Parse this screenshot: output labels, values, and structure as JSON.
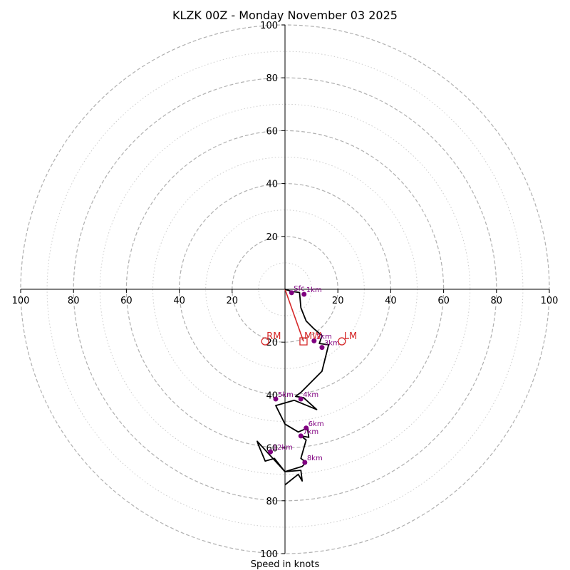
{
  "chart_data": {
    "type": "hodograph",
    "title": "KLZK 00Z - Monday November 03 2025",
    "xlabel": "Speed in knots",
    "units": "knots",
    "max_speed": 100,
    "ring_major": [
      20,
      40,
      60,
      80,
      100
    ],
    "ring_minor": [
      10,
      30,
      50,
      70,
      90
    ],
    "axis_ticks": [
      20,
      40,
      60,
      80,
      100
    ],
    "colors": {
      "trace": "#000000",
      "points": "#800080",
      "point_labels": "#800080",
      "storm_motion": "#d62728",
      "grid_major": "#b0b0b0",
      "grid_minor": "#cccccc"
    },
    "trace": [
      [
        0.0,
        0.0
      ],
      [
        2.5,
        -0.8
      ],
      [
        5.5,
        -1.2
      ],
      [
        6.0,
        -7.0
      ],
      [
        8.0,
        -12.0
      ],
      [
        11.0,
        -15.0
      ],
      [
        14.0,
        -17.5
      ],
      [
        13.0,
        -20.5
      ],
      [
        16.5,
        -21.0
      ],
      [
        14.0,
        -31.0
      ],
      [
        6.0,
        -39.0
      ],
      [
        4.0,
        -40.5
      ],
      [
        7.0,
        -41.0
      ],
      [
        12.0,
        -45.5
      ],
      [
        3.5,
        -42.0
      ],
      [
        -3.5,
        -44.0
      ],
      [
        0.0,
        -51.0
      ],
      [
        5.0,
        -54.0
      ],
      [
        8.5,
        -52.5
      ],
      [
        9.0,
        -56.0
      ],
      [
        6.0,
        -55.5
      ],
      [
        8.0,
        -57.0
      ],
      [
        6.0,
        -64.0
      ],
      [
        8.0,
        -65.5
      ],
      [
        6.5,
        -67.0
      ],
      [
        0.0,
        -69.0
      ],
      [
        -4.0,
        -64.0
      ],
      [
        -7.5,
        -65.0
      ],
      [
        -10.0,
        -59.0
      ],
      [
        -10.5,
        -57.5
      ],
      [
        0.0,
        -69.0
      ],
      [
        6.0,
        -68.5
      ],
      [
        6.5,
        -72.5
      ],
      [
        5.0,
        -70.0
      ],
      [
        0.0,
        -74.0
      ]
    ],
    "points": [
      {
        "label": "Sfc",
        "u": 2.5,
        "v": -1.3
      },
      {
        "label": "1km",
        "u": 7.2,
        "v": -1.9
      },
      {
        "label": "2km",
        "u": 11.0,
        "v": -19.5
      },
      {
        "label": "3km",
        "u": 14.0,
        "v": -22.0
      },
      {
        "label": "4km",
        "u": 6.0,
        "v": -41.5
      },
      {
        "label": "5km",
        "u": -3.5,
        "v": -41.5
      },
      {
        "label": "6km",
        "u": 8.0,
        "v": -52.5
      },
      {
        "label": "7km",
        "u": 6.0,
        "v": -55.5
      },
      {
        "label": "8km",
        "u": 7.5,
        "v": -65.5
      },
      {
        "label": "12km",
        "u": -5.5,
        "v": -61.5
      }
    ],
    "storm_motion": {
      "RM": {
        "label": "RM",
        "u": -7.5,
        "v": -19.7
      },
      "LM": {
        "label": "LM",
        "u": 21.5,
        "v": -19.7
      },
      "MW": {
        "label": "MW",
        "u": 7.0,
        "v": -19.7
      }
    }
  }
}
